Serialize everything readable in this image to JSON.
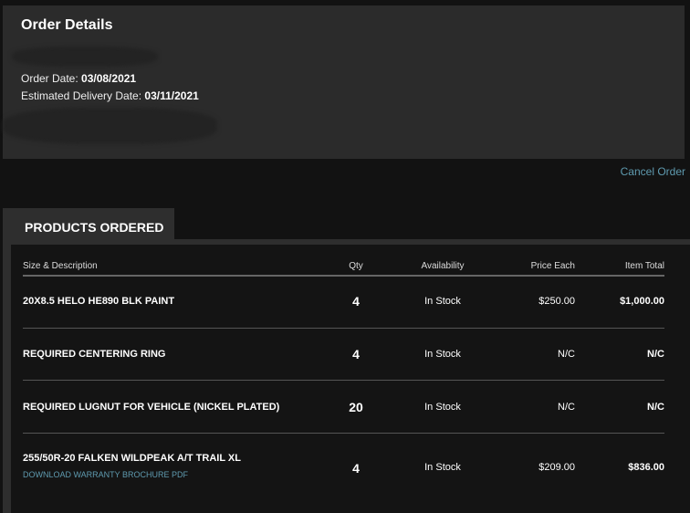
{
  "details": {
    "title": "Order Details",
    "order_date_label": "Order Date: ",
    "order_date": "03/08/2021",
    "delivery_label": "Estimated Delivery Date: ",
    "delivery_date": "03/11/2021"
  },
  "cancel_label": "Cancel Order",
  "tab_label": "PRODUCTS ORDERED",
  "table": {
    "headers": [
      "Size & Description",
      "Qty",
      "Availability",
      "Price Each",
      "Item Total"
    ],
    "rows": [
      {
        "desc": "20X8.5 HELO HE890 BLK PAINT",
        "qty": "4",
        "avail": "In Stock",
        "price": "$250.00",
        "total": "$1,000.00"
      },
      {
        "desc": "REQUIRED CENTERING RING",
        "qty": "4",
        "avail": "In Stock",
        "price": "N/C",
        "total": "N/C"
      },
      {
        "desc": "REQUIRED LUGNUT FOR VEHICLE (NICKEL PLATED)",
        "qty": "20",
        "avail": "In Stock",
        "price": "N/C",
        "total": "N/C"
      },
      {
        "desc": "255/50R-20 FALKEN WILDPEAK A/T TRAIL XL",
        "qty": "4",
        "avail": "In Stock",
        "price": "$209.00",
        "total": "$836.00",
        "link": "DOWNLOAD WARRANTY BROCHURE PDF"
      }
    ]
  }
}
